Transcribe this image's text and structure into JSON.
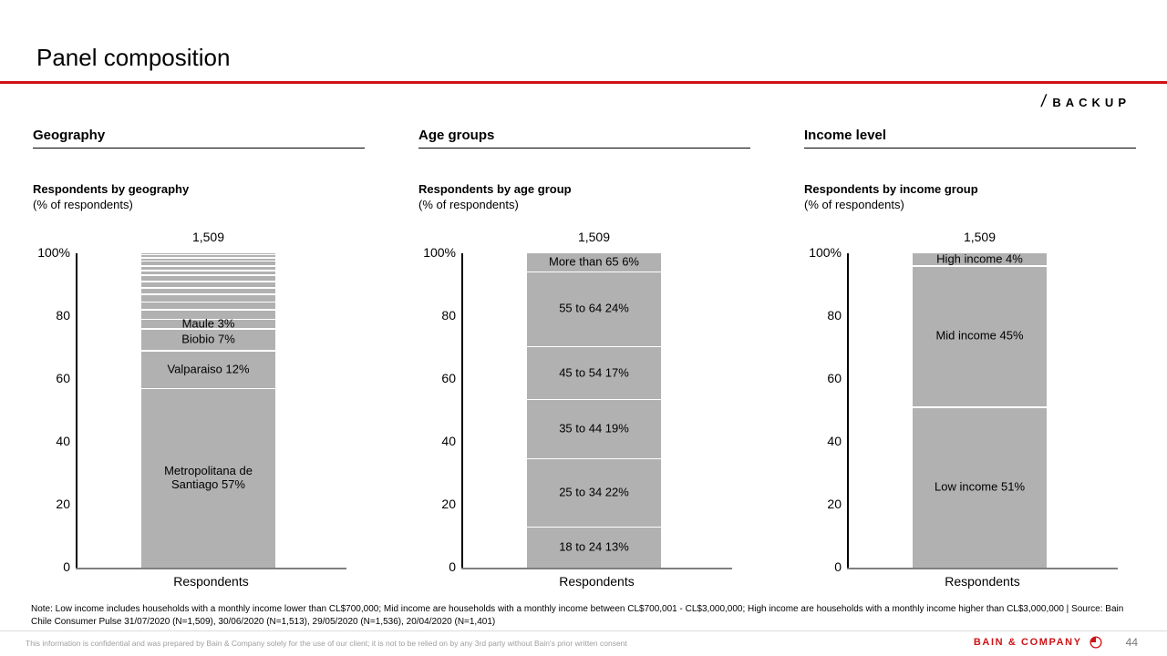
{
  "slide": {
    "title": "Panel composition",
    "backup_label": "BACKUP",
    "backup_slash": "/"
  },
  "colors": {
    "accent_red": "#d01217",
    "bar_gray": "#b1b1b1",
    "baseline_gray": "#7f7f7f",
    "footer_text_gray": "#9e9e9e"
  },
  "chart_data": [
    {
      "type": "bar",
      "stacked": true,
      "section": "Geography",
      "title": "Respondents by geography",
      "subtitle": "(% of respondents)",
      "total": "1,509",
      "xlabel": "Respondents",
      "x_categories": [
        "Respondents"
      ],
      "ylim": [
        0,
        100
      ],
      "yticks": [
        "100%",
        "80",
        "60",
        "40",
        "20",
        "0"
      ],
      "segments": [
        {
          "label": "Metropolitana de Santiago 57%",
          "value": 57
        },
        {
          "label": "Valparaiso 12%",
          "value": 12
        },
        {
          "label": "Biobio 7%",
          "value": 7
        },
        {
          "label": "Maule 3%",
          "value": 3
        },
        {
          "label": "",
          "value": 3
        },
        {
          "label": "",
          "value": 2.5
        },
        {
          "label": "",
          "value": 2.5
        },
        {
          "label": "",
          "value": 2
        },
        {
          "label": "",
          "value": 2
        },
        {
          "label": "",
          "value": 2
        },
        {
          "label": "",
          "value": 1.5
        },
        {
          "label": "",
          "value": 1.5
        },
        {
          "label": "",
          "value": 1.5
        },
        {
          "label": "",
          "value": 1
        },
        {
          "label": "",
          "value": 1
        },
        {
          "label": "",
          "value": 0.5
        }
      ]
    },
    {
      "type": "bar",
      "stacked": true,
      "section": "Age groups",
      "title": "Respondents by age group",
      "subtitle": "(% of respondents)",
      "total": "1,509",
      "xlabel": "Respondents",
      "x_categories": [
        "Respondents"
      ],
      "ylim": [
        0,
        100
      ],
      "yticks": [
        "100%",
        "80",
        "60",
        "40",
        "20",
        "0"
      ],
      "segments": [
        {
          "label": "18 to 24 13%",
          "value": 13
        },
        {
          "label": "25 to 34 22%",
          "value": 22
        },
        {
          "label": "35 to 44 19%",
          "value": 19
        },
        {
          "label": "45 to 54 17%",
          "value": 17
        },
        {
          "label": "55 to 64 24%",
          "value": 24
        },
        {
          "label": "More than 65 6%",
          "value": 6
        }
      ]
    },
    {
      "type": "bar",
      "stacked": true,
      "section": "Income level",
      "title": "Respondents by income group",
      "subtitle": "(% of respondents)",
      "total": "1,509",
      "xlabel": "Respondents",
      "x_categories": [
        "Respondents"
      ],
      "ylim": [
        0,
        100
      ],
      "yticks": [
        "100%",
        "80",
        "60",
        "40",
        "20",
        "0"
      ],
      "segments": [
        {
          "label": "Low income 51%",
          "value": 51
        },
        {
          "label": "Mid income 45%",
          "value": 45
        },
        {
          "label": "High income 4%",
          "value": 4
        }
      ]
    }
  ],
  "note": "Note: Low income includes households with a monthly income lower than CL$700,000; Mid income are households with a monthly income between CL$700,001 - CL$3,000,000; High income are households with a monthly income higher than CL$3,000,000 | Source: Bain Chile Consumer Pulse 31/07/2020 (N=1,509), 30/06/2020 (N=1,513), 29/05/2020 (N=1,536), 20/04/2020 (N=1,401)",
  "footer": {
    "disclaimer": "This information is confidential and was prepared by Bain & Company solely for the use of our client; it is not to be relied on by any 3rd party without Bain's prior written consent",
    "brand": "BAIN & COMPANY",
    "page_number": "44"
  }
}
